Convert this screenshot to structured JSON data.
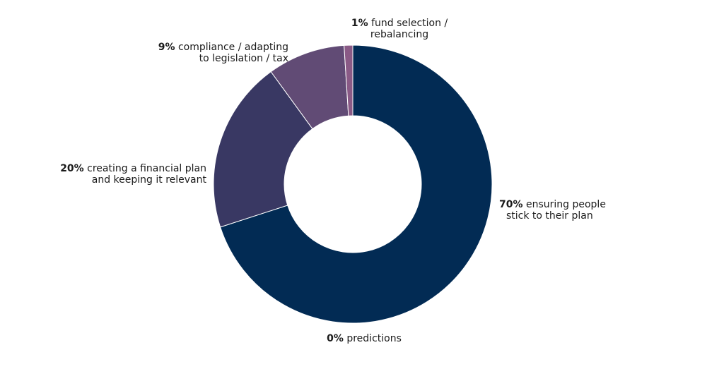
{
  "chart_data": {
    "type": "pie",
    "variant": "donut",
    "slices": [
      {
        "label": "ensuring people stick to their plan",
        "value": 70,
        "pct_text": "70%",
        "lines": [
          "ensuring people",
          "stick to their plan"
        ],
        "color": "#022b54"
      },
      {
        "label": "predictions",
        "value": 0,
        "pct_text": "0%",
        "lines": [
          "predictions"
        ],
        "color": "#022b54"
      },
      {
        "label": "creating a financial plan and keeping it relevant",
        "value": 20,
        "pct_text": "20%",
        "lines": [
          "creating a financial plan",
          "and keeping it relevant"
        ],
        "color": "#393863"
      },
      {
        "label": "compliance / adapting to legislation / tax",
        "value": 9,
        "pct_text": "9%",
        "lines": [
          "compliance / adapting",
          "to legislation / tax"
        ],
        "color": "#614b75"
      },
      {
        "label": "fund selection / rebalancing",
        "value": 1,
        "pct_text": "1%",
        "lines": [
          "fund selection /",
          "rebalancing"
        ],
        "color": "#8a5a86"
      }
    ],
    "legend": "none",
    "grid": false
  }
}
